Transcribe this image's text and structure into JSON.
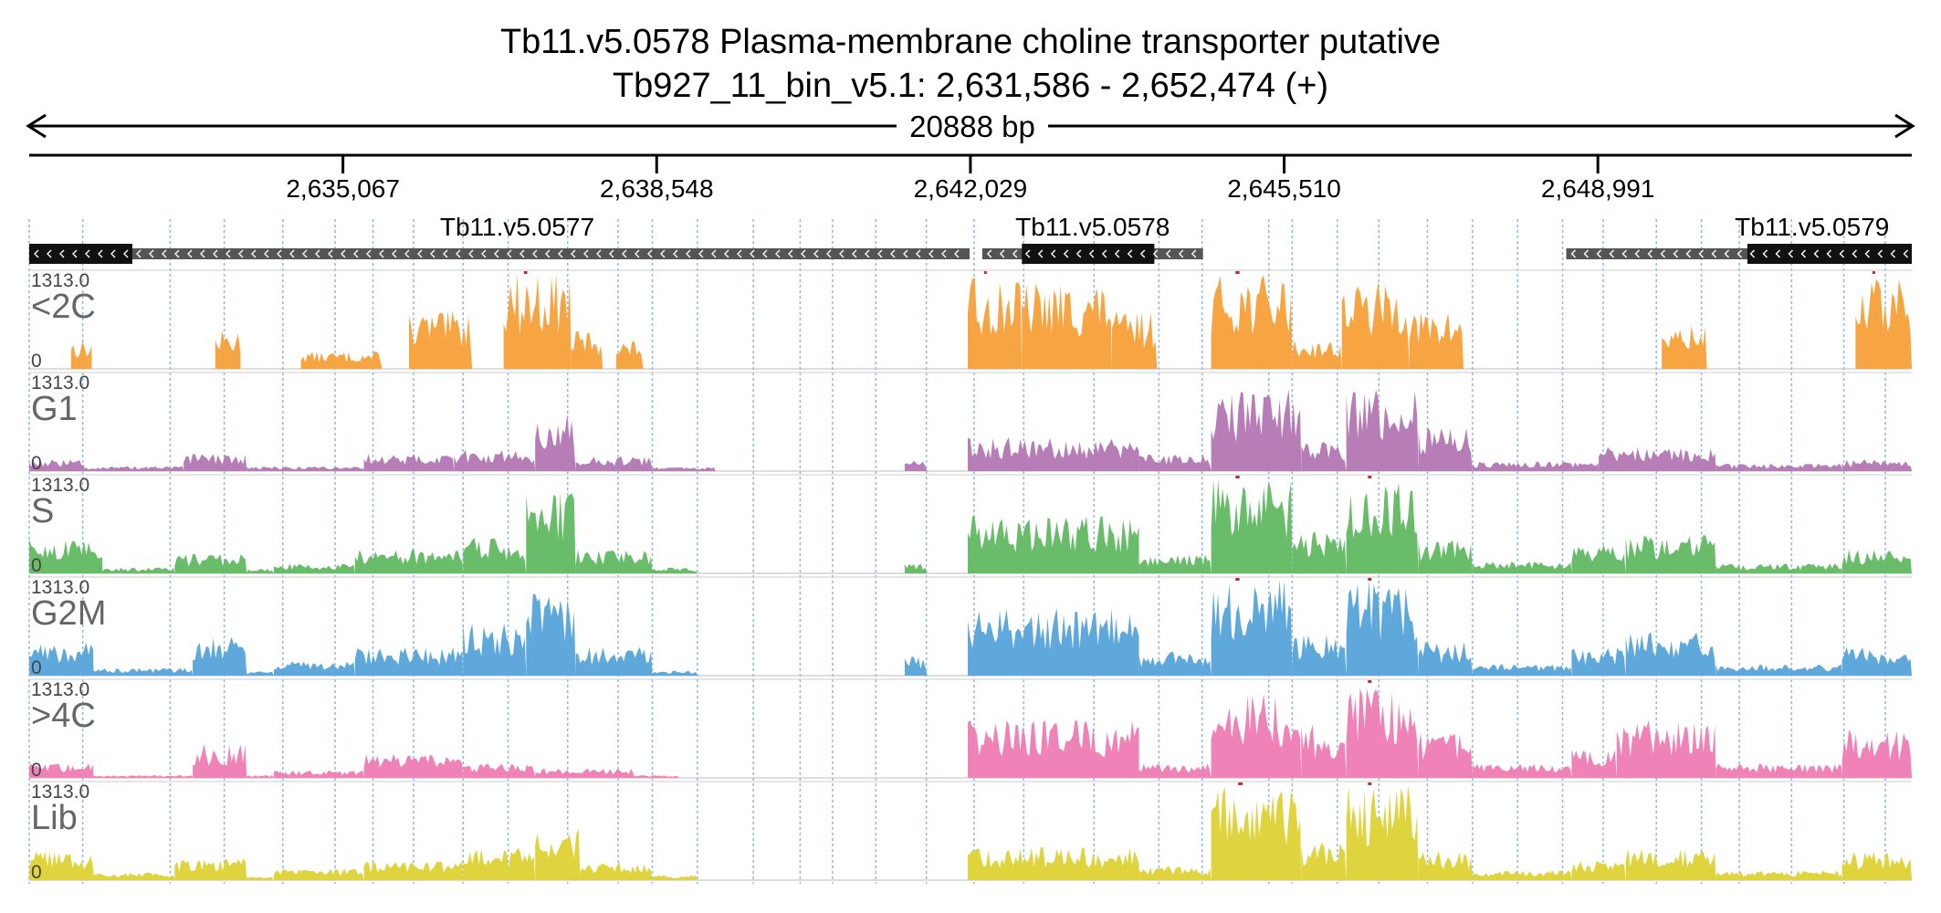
{
  "title": "Tb11.v5.0578  Plasma-membrane choline transporter  putative",
  "subtitle": "Tb927_11_bin_v5.1: 2,631,586 - 2,652,474 (+)",
  "span_label": "20888 bp",
  "colors": {
    "text": "#000000",
    "track_label": "#666666",
    "gene_thick": "#111111",
    "gene_thin": "#555555",
    "grid": "#8fb8e8",
    "clipped": "#b33333"
  },
  "chart_data": {
    "type": "area",
    "x_range": [
      2631586,
      2652474
    ],
    "x_ticks": [
      {
        "value": 2635067,
        "label": "2,635,067"
      },
      {
        "value": 2638548,
        "label": "2,638,548"
      },
      {
        "value": 2642029,
        "label": "2,642,029"
      },
      {
        "value": 2645510,
        "label": "2,645,510"
      },
      {
        "value": 2648991,
        "label": "2,648,991"
      }
    ],
    "exon_gridlines": [
      2632180,
      2633150,
      2633750,
      2634400,
      2634980,
      2635400,
      2635850,
      2636400,
      2636900,
      2637560,
      2638120,
      2638500,
      2639000,
      2639620,
      2640140,
      2640500,
      2640980,
      2641540,
      2642070,
      2642620,
      2643400,
      2644120,
      2644600,
      2645340,
      2645600,
      2646100,
      2646560,
      2647100,
      2647600,
      2648100,
      2648600,
      2649050,
      2649640,
      2650140,
      2650560,
      2651140,
      2651720,
      2652180
    ],
    "genes": [
      {
        "name": "Tb11.v5.0577",
        "strand": "-",
        "start": 2631586,
        "end": 2642020,
        "cds_start": 2631586,
        "cds_end": 2632730
      },
      {
        "name": "Tb11.v5.0578",
        "strand": "-",
        "start": 2642160,
        "end": 2644610,
        "cds_start": 2642600,
        "cds_end": 2644070
      },
      {
        "name": "Tb11.v5.0579",
        "strand": "-",
        "start": 2648640,
        "end": 2652474,
        "cds_start": 2650650,
        "cds_end": 2652474
      }
    ],
    "y_range": [
      0,
      1313.0
    ],
    "y_max_label": "1313.0",
    "y_min_label": "0",
    "series": [
      {
        "name": "<2C",
        "color": "#f7a443",
        "regions": [
          [
            2631586,
            2631600,
            0.08
          ],
          [
            2632050,
            2632280,
            0.3
          ],
          [
            2633650,
            2633930,
            0.4
          ],
          [
            2634600,
            2635500,
            0.18
          ],
          [
            2635800,
            2636500,
            0.6
          ],
          [
            2636850,
            2637600,
            1.0
          ],
          [
            2637600,
            2637950,
            0.4
          ],
          [
            2638100,
            2638400,
            0.3
          ],
          [
            2642000,
            2642600,
            0.95
          ],
          [
            2642600,
            2643600,
            0.9
          ],
          [
            2643600,
            2644100,
            0.6
          ],
          [
            2644700,
            2645600,
            0.98
          ],
          [
            2645600,
            2646150,
            0.3
          ],
          [
            2646150,
            2646900,
            0.9
          ],
          [
            2646900,
            2647500,
            0.6
          ],
          [
            2649700,
            2650200,
            0.45
          ],
          [
            2651850,
            2652474,
            0.95
          ]
        ]
      },
      {
        "name": "G1",
        "color": "#b77db7",
        "regions": [
          [
            2631586,
            2632200,
            0.12
          ],
          [
            2632200,
            2633300,
            0.05
          ],
          [
            2633300,
            2634000,
            0.18
          ],
          [
            2634000,
            2635300,
            0.05
          ],
          [
            2635300,
            2636300,
            0.18
          ],
          [
            2636300,
            2637200,
            0.22
          ],
          [
            2637200,
            2637650,
            0.6
          ],
          [
            2637650,
            2638500,
            0.15
          ],
          [
            2638500,
            2639200,
            0.04
          ],
          [
            2641300,
            2641550,
            0.12
          ],
          [
            2642000,
            2643900,
            0.35
          ],
          [
            2643900,
            2644700,
            0.18
          ],
          [
            2644700,
            2645700,
            0.85
          ],
          [
            2645700,
            2646200,
            0.3
          ],
          [
            2646200,
            2647000,
            0.85
          ],
          [
            2647000,
            2647600,
            0.45
          ],
          [
            2647600,
            2649000,
            0.1
          ],
          [
            2649000,
            2650300,
            0.25
          ],
          [
            2650300,
            2651700,
            0.08
          ],
          [
            2651700,
            2652474,
            0.12
          ]
        ]
      },
      {
        "name": "S",
        "color": "#69bd6a",
        "regions": [
          [
            2631586,
            2632400,
            0.35
          ],
          [
            2632400,
            2633200,
            0.06
          ],
          [
            2633200,
            2634000,
            0.2
          ],
          [
            2634000,
            2634300,
            0.05
          ],
          [
            2634300,
            2635200,
            0.1
          ],
          [
            2635200,
            2636400,
            0.25
          ],
          [
            2636400,
            2637100,
            0.38
          ],
          [
            2637100,
            2637650,
            0.85
          ],
          [
            2637650,
            2638500,
            0.25
          ],
          [
            2638500,
            2639000,
            0.06
          ],
          [
            2641300,
            2641550,
            0.1
          ],
          [
            2642000,
            2643900,
            0.6
          ],
          [
            2643900,
            2644700,
            0.2
          ],
          [
            2644700,
            2645600,
            0.98
          ],
          [
            2645600,
            2646200,
            0.45
          ],
          [
            2646200,
            2647000,
            0.95
          ],
          [
            2647000,
            2647600,
            0.35
          ],
          [
            2647600,
            2648700,
            0.12
          ],
          [
            2648700,
            2649300,
            0.3
          ],
          [
            2649300,
            2650300,
            0.4
          ],
          [
            2650300,
            2651700,
            0.1
          ],
          [
            2651700,
            2652474,
            0.25
          ]
        ]
      },
      {
        "name": "G2M",
        "color": "#5fa8dc",
        "regions": [
          [
            2631586,
            2632300,
            0.35
          ],
          [
            2632300,
            2633400,
            0.08
          ],
          [
            2633400,
            2634000,
            0.45
          ],
          [
            2634000,
            2634300,
            0.05
          ],
          [
            2634300,
            2635200,
            0.15
          ],
          [
            2635200,
            2636400,
            0.3
          ],
          [
            2636400,
            2637100,
            0.55
          ],
          [
            2637100,
            2637650,
            0.9
          ],
          [
            2637650,
            2638500,
            0.3
          ],
          [
            2638500,
            2639000,
            0.05
          ],
          [
            2641300,
            2641550,
            0.2
          ],
          [
            2642000,
            2643900,
            0.7
          ],
          [
            2643900,
            2644700,
            0.25
          ],
          [
            2644700,
            2645600,
            1.0
          ],
          [
            2645600,
            2646200,
            0.45
          ],
          [
            2646200,
            2647000,
            1.0
          ],
          [
            2647000,
            2647600,
            0.35
          ],
          [
            2647600,
            2648700,
            0.12
          ],
          [
            2648700,
            2649300,
            0.3
          ],
          [
            2649300,
            2650300,
            0.45
          ],
          [
            2650300,
            2651700,
            0.12
          ],
          [
            2651700,
            2652474,
            0.3
          ]
        ]
      },
      {
        "name": ">4C",
        "color": "#ef83b7",
        "regions": [
          [
            2631586,
            2632300,
            0.15
          ],
          [
            2632300,
            2633400,
            0.03
          ],
          [
            2633400,
            2634000,
            0.35
          ],
          [
            2634000,
            2634300,
            0.03
          ],
          [
            2634300,
            2635300,
            0.08
          ],
          [
            2635300,
            2636400,
            0.25
          ],
          [
            2636400,
            2637200,
            0.15
          ],
          [
            2637200,
            2638300,
            0.1
          ],
          [
            2638300,
            2638800,
            0.03
          ],
          [
            2642000,
            2643900,
            0.6
          ],
          [
            2643900,
            2644700,
            0.15
          ],
          [
            2644700,
            2645700,
            0.9
          ],
          [
            2645700,
            2646200,
            0.55
          ],
          [
            2646200,
            2647000,
            0.95
          ],
          [
            2647000,
            2647600,
            0.5
          ],
          [
            2647600,
            2648700,
            0.15
          ],
          [
            2648700,
            2649200,
            0.3
          ],
          [
            2649200,
            2650300,
            0.6
          ],
          [
            2650300,
            2651700,
            0.15
          ],
          [
            2651700,
            2652474,
            0.5
          ]
        ]
      },
      {
        "name": "Lib",
        "color": "#dfd43e",
        "regions": [
          [
            2631586,
            2632300,
            0.3
          ],
          [
            2632300,
            2633200,
            0.08
          ],
          [
            2633200,
            2634000,
            0.25
          ],
          [
            2634000,
            2634300,
            0.05
          ],
          [
            2634300,
            2635300,
            0.12
          ],
          [
            2635300,
            2636400,
            0.2
          ],
          [
            2636400,
            2637200,
            0.35
          ],
          [
            2637200,
            2637700,
            0.55
          ],
          [
            2637700,
            2638500,
            0.2
          ],
          [
            2638500,
            2639000,
            0.05
          ],
          [
            2642000,
            2643900,
            0.35
          ],
          [
            2643900,
            2644700,
            0.15
          ],
          [
            2644700,
            2645700,
            0.98
          ],
          [
            2645700,
            2646200,
            0.4
          ],
          [
            2646200,
            2647000,
            0.98
          ],
          [
            2647000,
            2647600,
            0.3
          ],
          [
            2647600,
            2648700,
            0.1
          ],
          [
            2648700,
            2649300,
            0.2
          ],
          [
            2649300,
            2650300,
            0.35
          ],
          [
            2650300,
            2651700,
            0.1
          ],
          [
            2651700,
            2652474,
            0.3
          ]
        ]
      }
    ]
  }
}
